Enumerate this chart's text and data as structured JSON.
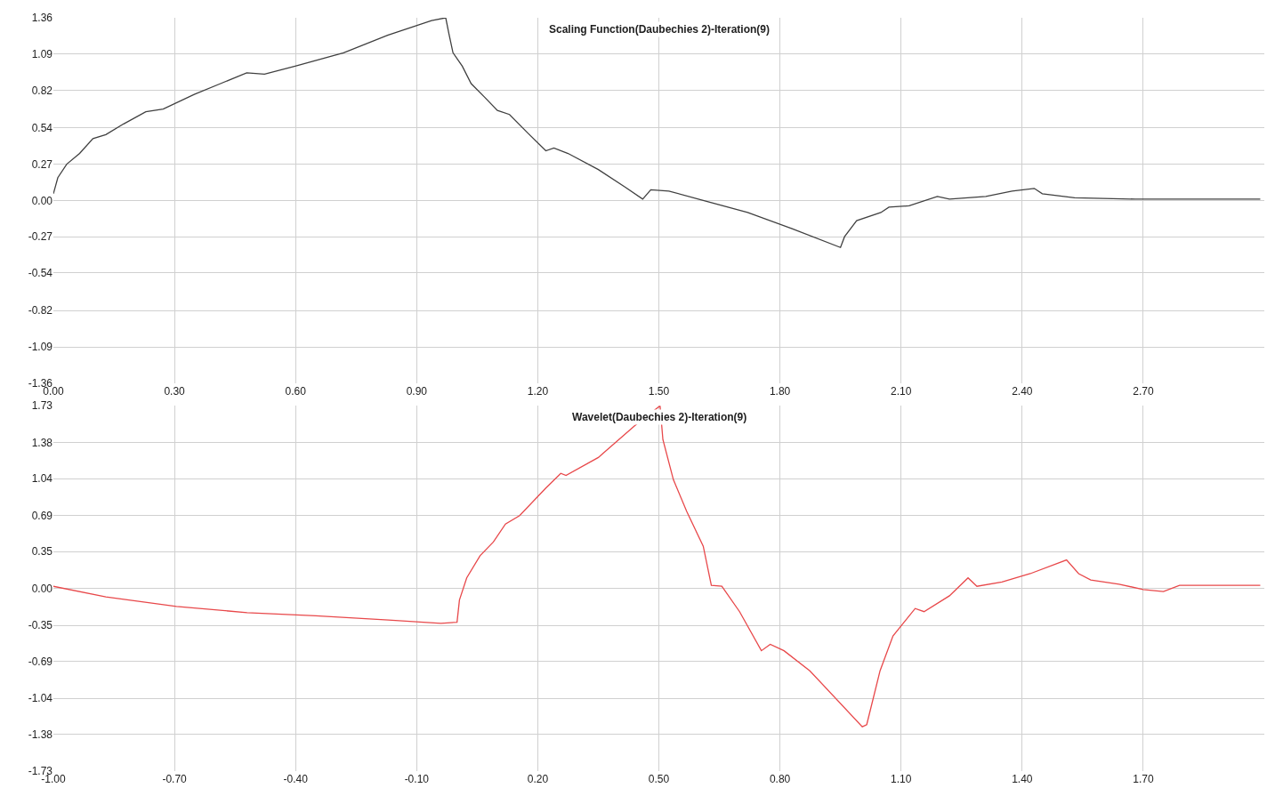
{
  "chart_data": [
    {
      "type": "line",
      "title": "Scaling Function(Daubechies 2)-Iteration(9)",
      "grid": true,
      "marker": "none",
      "line_style": "solid",
      "xlim": [
        0,
        3
      ],
      "ylim": [
        -1.36,
        1.36
      ],
      "xticks": [
        {
          "value": 0,
          "label": "0.00"
        },
        {
          "value": 0.3,
          "label": "0.30"
        },
        {
          "value": 0.6,
          "label": "0.60"
        },
        {
          "value": 0.9,
          "label": "0.90"
        },
        {
          "value": 1.2,
          "label": "1.20"
        },
        {
          "value": 1.5,
          "label": "1.50"
        },
        {
          "value": 1.8,
          "label": "1.80"
        },
        {
          "value": 2.1,
          "label": "2.10"
        },
        {
          "value": 2.4,
          "label": "2.40"
        },
        {
          "value": 2.7,
          "label": "2.70"
        }
      ],
      "yticks": [
        1.36,
        1.09,
        0.82,
        0.54,
        0.27,
        {
          "value": 0,
          "label": "0.00"
        },
        -0.27,
        -0.54,
        -0.82,
        -1.09,
        -1.36
      ],
      "x": [
        0,
        0.011,
        0.033,
        0.065,
        0.098,
        0.13,
        0.174,
        0.229,
        0.272,
        0.349,
        0.414,
        0.479,
        0.523,
        0.599,
        0.719,
        0.828,
        0.937,
        0.972,
        0.98,
        0.99,
        1.013,
        1.035,
        1.068,
        1.1,
        1.13,
        1.176,
        1.22,
        1.24,
        1.275,
        1.35,
        1.416,
        1.46,
        1.48,
        1.525,
        1.61,
        1.72,
        1.83,
        1.95,
        1.96,
        1.99,
        2.05,
        2.07,
        2.12,
        2.19,
        2.22,
        2.31,
        2.375,
        2.43,
        2.45,
        2.53,
        2.68,
        2.77,
        2.99
      ],
      "series": [
        {
          "color": "#404040",
          "values": [
            0.05,
            0.17,
            0.27,
            0.35,
            0.46,
            0.49,
            0.57,
            0.66,
            0.68,
            0.79,
            0.87,
            0.95,
            0.94,
            1.0,
            1.1,
            1.23,
            1.34,
            1.36,
            1.24,
            1.1,
            1.0,
            0.87,
            0.77,
            0.67,
            0.64,
            0.5,
            0.37,
            0.39,
            0.35,
            0.23,
            0.1,
            0.01,
            0.08,
            0.07,
            0.0,
            -0.09,
            -0.21,
            -0.35,
            -0.27,
            -0.15,
            -0.09,
            -0.05,
            -0.04,
            0.03,
            0.01,
            0.03,
            0.07,
            0.09,
            0.05,
            0.02,
            0.01,
            0.01,
            0.01
          ]
        }
      ]
    },
    {
      "type": "line",
      "title": "Wavelet(Daubechies 2)-Iteration(9)",
      "grid": true,
      "marker": "none",
      "line_style": "solid",
      "xlim": [
        -1,
        2
      ],
      "ylim": [
        -1.73,
        1.73
      ],
      "xticks": [
        {
          "value": -1,
          "label": "-1.00"
        },
        {
          "value": -0.7,
          "label": "-0.70"
        },
        {
          "value": -0.4,
          "label": "-0.40"
        },
        {
          "value": -0.1,
          "label": "-0.10"
        },
        {
          "value": 0.2,
          "label": "0.20"
        },
        {
          "value": 0.5,
          "label": "0.50"
        },
        {
          "value": 0.8,
          "label": "0.80"
        },
        {
          "value": 1.1,
          "label": "1.10"
        },
        {
          "value": 1.4,
          "label": "1.40"
        },
        {
          "value": 1.7,
          "label": "1.70"
        }
      ],
      "yticks": [
        1.73,
        1.38,
        1.04,
        0.69,
        0.35,
        {
          "value": 0,
          "label": "0.00"
        },
        -0.35,
        -0.69,
        -1.04,
        -1.38,
        -1.73
      ],
      "x": [
        -1.0,
        -0.87,
        -0.695,
        -0.52,
        -0.35,
        -0.17,
        -0.04,
        0.0,
        0.006,
        0.024,
        0.057,
        0.09,
        0.12,
        0.155,
        0.22,
        0.257,
        0.27,
        0.35,
        0.44,
        0.503,
        0.51,
        0.536,
        0.569,
        0.61,
        0.63,
        0.656,
        0.7,
        0.754,
        0.776,
        0.81,
        0.874,
        1.004,
        1.015,
        1.048,
        1.08,
        1.135,
        1.157,
        1.22,
        1.266,
        1.288,
        1.35,
        1.42,
        1.51,
        1.54,
        1.57,
        1.64,
        1.7,
        1.75,
        1.79,
        1.92,
        1.99
      ],
      "series": [
        {
          "color": "#e8484a",
          "values": [
            0.02,
            -0.08,
            -0.17,
            -0.23,
            -0.26,
            -0.3,
            -0.33,
            -0.32,
            -0.11,
            0.1,
            0.31,
            0.44,
            0.61,
            0.69,
            0.95,
            1.09,
            1.07,
            1.24,
            1.54,
            1.73,
            1.41,
            1.03,
            0.73,
            0.4,
            0.03,
            0.02,
            -0.22,
            -0.59,
            -0.53,
            -0.59,
            -0.78,
            -1.31,
            -1.29,
            -0.78,
            -0.45,
            -0.19,
            -0.22,
            -0.07,
            0.1,
            0.02,
            0.06,
            0.14,
            0.27,
            0.14,
            0.08,
            0.04,
            -0.01,
            -0.03,
            0.03,
            0.03,
            0.03
          ]
        }
      ]
    }
  ]
}
